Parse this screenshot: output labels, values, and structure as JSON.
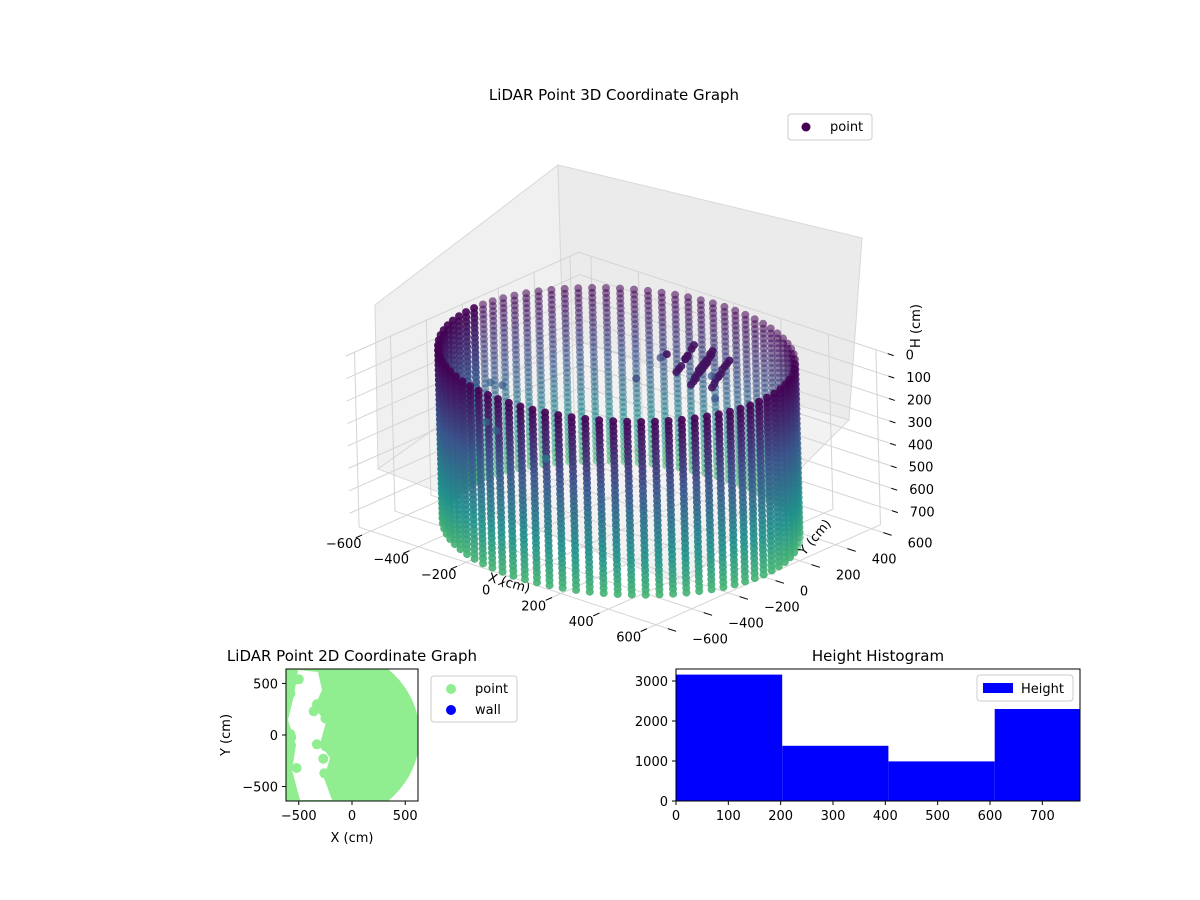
{
  "chart_data": [
    {
      "type": "scatter",
      "title": "LiDAR Point 3D Coordinate Graph",
      "xlabel": "X (cm)",
      "ylabel": "Y (cm)",
      "zlabel": "H (cm)",
      "legend": {
        "position": "top-right",
        "entries": [
          "point"
        ]
      },
      "xlim": [
        -650,
        650
      ],
      "ylim": [
        -650,
        650
      ],
      "zlim": [
        780,
        0
      ],
      "x_ticks": [
        "−600",
        "−400",
        "−200",
        "0",
        "200",
        "400",
        "600"
      ],
      "y_ticks": [
        "−600",
        "−400",
        "−200",
        "0",
        "200",
        "400",
        "600"
      ],
      "z_ticks": [
        "0",
        "100",
        "200",
        "300",
        "400",
        "500",
        "600",
        "700"
      ],
      "grid": true,
      "colormap": [
        "#440154",
        "#3b528b",
        "#21918c",
        "#5ec962"
      ],
      "wall": {
        "center": [
          0,
          0
        ],
        "radius": 600,
        "heights": [
          0,
          770
        ]
      },
      "points": [
        {
          "x": -520,
          "y": 40,
          "h": 330
        },
        {
          "x": -600,
          "y": 80,
          "h": 360
        },
        {
          "x": -470,
          "y": -120,
          "h": 420
        },
        {
          "x": -350,
          "y": -220,
          "h": 380
        },
        {
          "x": -250,
          "y": -80,
          "h": 520
        },
        {
          "x": -200,
          "y": 500,
          "h": 260
        },
        {
          "x": 0,
          "y": 520,
          "h": 280
        },
        {
          "x": 120,
          "y": 380,
          "h": 290
        },
        {
          "x": -120,
          "y": 260,
          "h": 240
        }
      ]
    },
    {
      "type": "scatter",
      "title": "LiDAR Point 2D Coordinate Graph",
      "xlabel": "X (cm)",
      "ylabel": "Y (cm)",
      "xlim": [
        -620,
        620
      ],
      "ylim": [
        -640,
        640
      ],
      "x_ticks": [
        "−500",
        "0",
        "500"
      ],
      "y_ticks": [
        "500",
        "0",
        "−500"
      ],
      "legend": {
        "position": "outside-right",
        "entries": [
          {
            "name": "point",
            "color": "#90ee90"
          },
          {
            "name": "wall",
            "color": "#0000ff"
          }
        ]
      },
      "points": [
        {
          "x": -500,
          "y": 540
        },
        {
          "x": -560,
          "y": 520
        },
        {
          "x": -580,
          "y": 400
        },
        {
          "x": -330,
          "y": 300
        },
        {
          "x": -360,
          "y": 230
        },
        {
          "x": -250,
          "y": 160
        },
        {
          "x": -580,
          "y": 10
        },
        {
          "x": -570,
          "y": -20
        },
        {
          "x": -330,
          "y": -90
        },
        {
          "x": -250,
          "y": -110
        },
        {
          "x": -270,
          "y": -230
        },
        {
          "x": -520,
          "y": -320
        },
        {
          "x": -610,
          "y": -200
        },
        {
          "x": -260,
          "y": -370
        }
      ]
    },
    {
      "type": "bar",
      "title": "Height Histogram",
      "xlabel": "",
      "ylabel": "",
      "legend": {
        "position": "top-right",
        "entries": [
          "Height"
        ]
      },
      "xlim": [
        0,
        772
      ],
      "ylim": [
        0,
        3300
      ],
      "x_ticks": [
        "0",
        "100",
        "200",
        "300",
        "400",
        "500",
        "600",
        "700"
      ],
      "y_ticks": [
        "0",
        "1000",
        "2000",
        "3000"
      ],
      "bins": [
        {
          "from": 0,
          "to": 203,
          "value": 3160
        },
        {
          "from": 203,
          "to": 406,
          "value": 1380
        },
        {
          "from": 406,
          "to": 609,
          "value": 990
        },
        {
          "from": 609,
          "to": 772,
          "value": 2300
        }
      ],
      "color": "#0000ff"
    }
  ]
}
